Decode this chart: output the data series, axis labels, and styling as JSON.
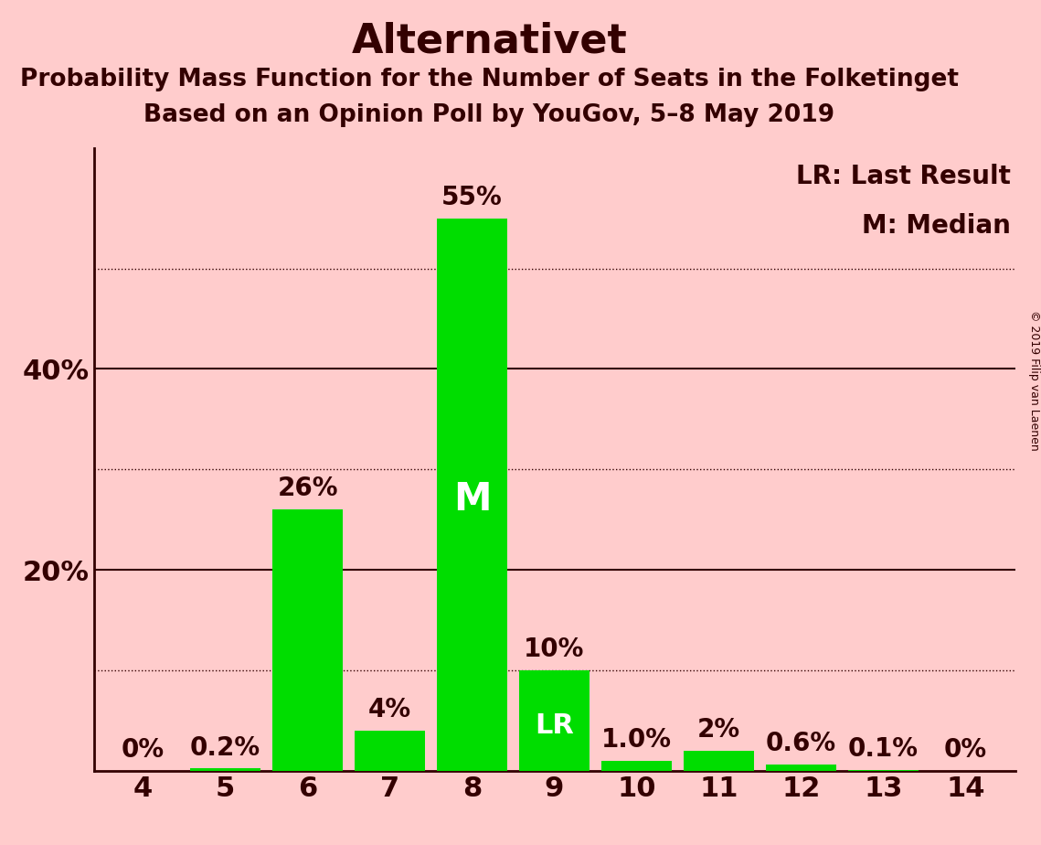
{
  "title": "Alternativet",
  "subtitle1": "Probability Mass Function for the Number of Seats in the Folketinget",
  "subtitle2": "Based on an Opinion Poll by YouGov, 5–8 May 2019",
  "copyright": "© 2019 Filip van Laenen",
  "categories": [
    4,
    5,
    6,
    7,
    8,
    9,
    10,
    11,
    12,
    13,
    14
  ],
  "values": [
    0.0,
    0.2,
    26.0,
    4.0,
    55.0,
    10.0,
    1.0,
    2.0,
    0.6,
    0.1,
    0.0
  ],
  "bar_labels": [
    "0%",
    "0.2%",
    "26%",
    "4%",
    "55%",
    "10%",
    "1.0%",
    "2%",
    "0.6%",
    "0.1%",
    "0%"
  ],
  "bar_color": "#00dd00",
  "median_bar": 8,
  "lr_bar": 9,
  "median_label": "M",
  "lr_label": "LR",
  "legend_lr": "LR: Last Result",
  "legend_m": "M: Median",
  "background_color": "#ffcccc",
  "axis_color": "#330000",
  "label_color_inside": "#ffffff",
  "label_color_outside": "#330000",
  "solid_gridlines": [
    20,
    40
  ],
  "dotted_gridlines": [
    10,
    30,
    50
  ],
  "ylim": [
    0,
    62
  ],
  "title_fontsize": 32,
  "subtitle_fontsize": 19,
  "bar_label_fontsize": 20,
  "axis_label_fontsize": 22,
  "legend_fontsize": 20,
  "copyright_fontsize": 9
}
